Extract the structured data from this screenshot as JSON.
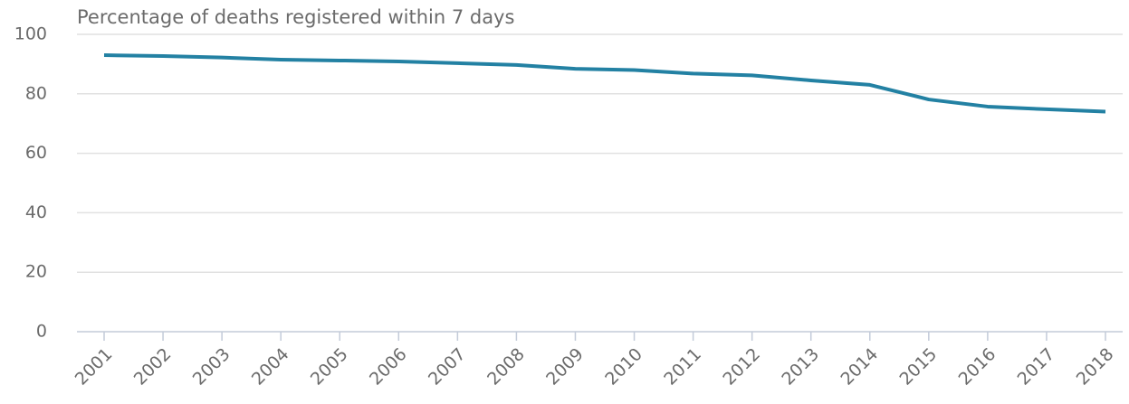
{
  "chart_data": {
    "type": "line",
    "title": "Percentage of deaths registered within 7 days",
    "categories": [
      "2001",
      "2002",
      "2003",
      "2004",
      "2005",
      "2006",
      "2007",
      "2008",
      "2009",
      "2010",
      "2011",
      "2012",
      "2013",
      "2014",
      "2015",
      "2016",
      "2017",
      "2018"
    ],
    "series": [
      {
        "name": "Percentage of deaths registered within 7 days",
        "color": "#2381a3",
        "values": [
          93.0,
          92.7,
          92.2,
          91.5,
          91.2,
          90.9,
          90.3,
          89.7,
          88.4,
          88.0,
          86.8,
          86.2,
          84.5,
          83.0,
          78.1,
          75.7,
          74.8,
          74.0
        ]
      }
    ],
    "ylim": [
      0,
      100
    ],
    "yticks": [
      0,
      20,
      40,
      60,
      80,
      100
    ],
    "grid": true
  }
}
